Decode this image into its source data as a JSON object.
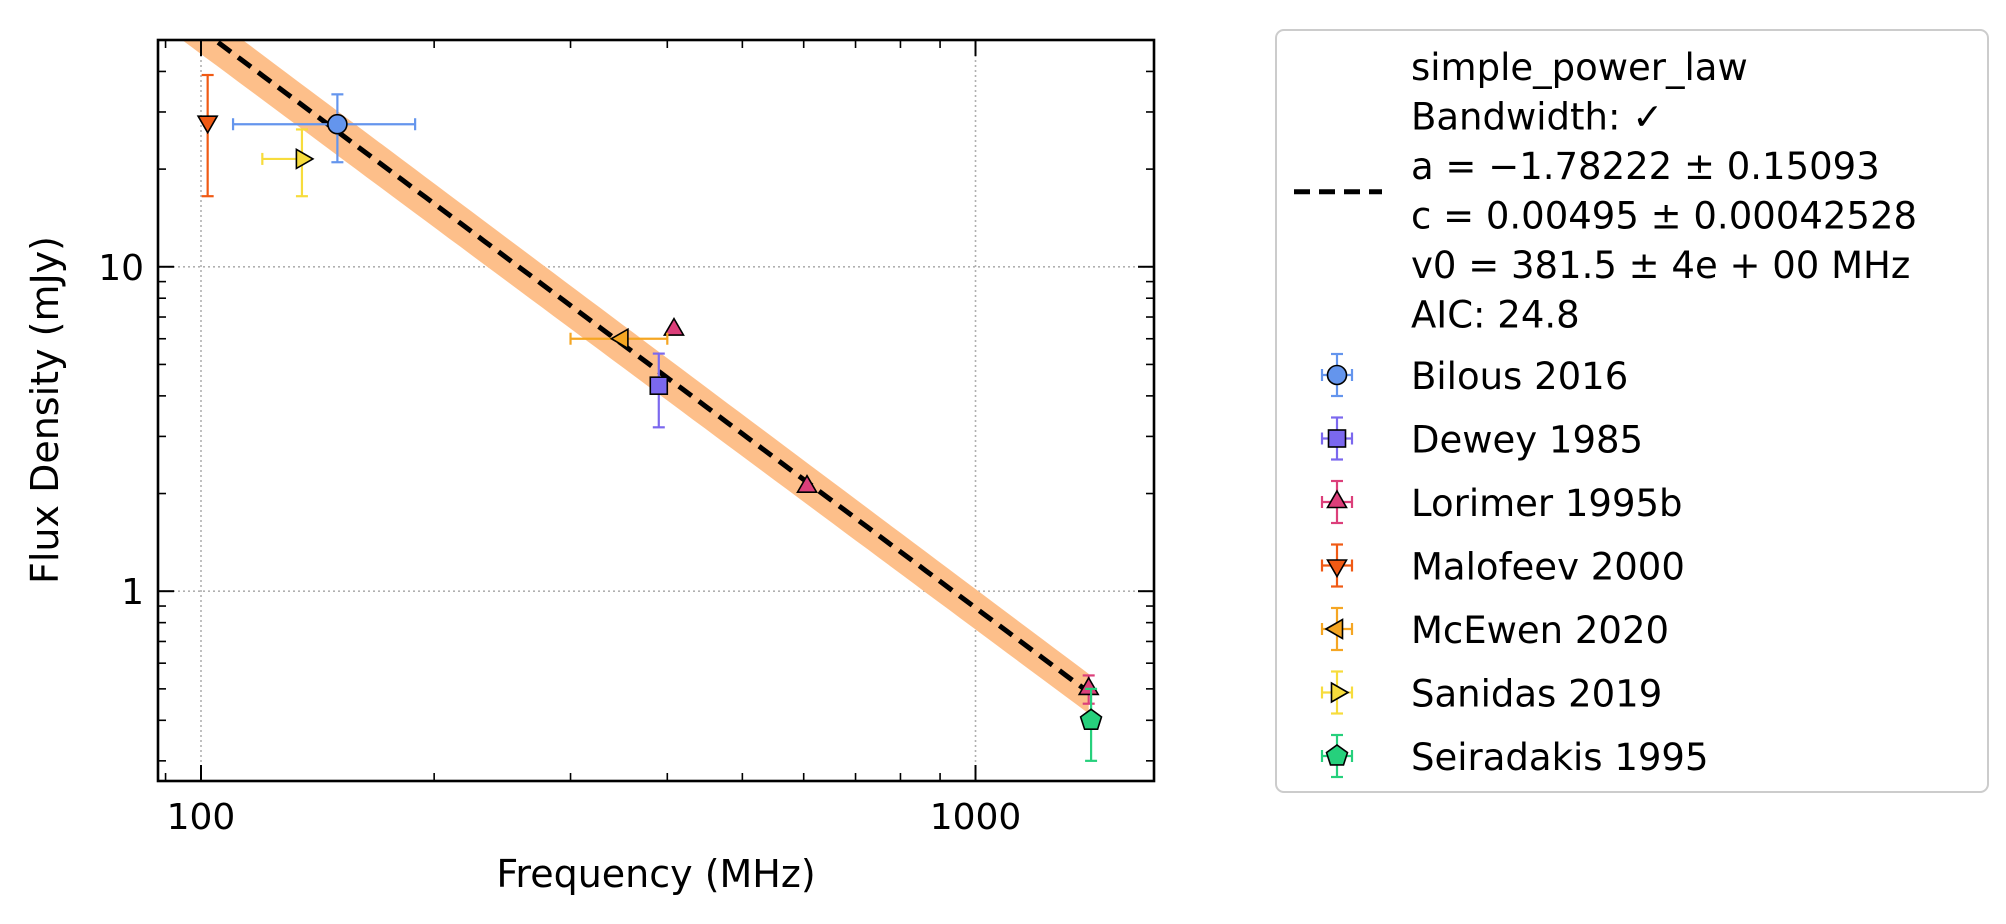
{
  "chart_data": {
    "type": "scatter",
    "title": "",
    "xlabel": "Frequency (MHz)",
    "ylabel": "Flux Density (mJy)",
    "xscale": "log",
    "yscale": "log",
    "xlim": [
      88,
      1700
    ],
    "ylim": [
      0.26,
      50
    ],
    "xticks": [
      {
        "value": 100,
        "label": "100"
      },
      {
        "value": 1000,
        "label": "1000"
      }
    ],
    "yticks": [
      {
        "value": 1,
        "label": "1"
      },
      {
        "value": 10,
        "label": "10"
      }
    ],
    "grid": true,
    "legend_position": "outside-right",
    "fit": {
      "lines": [
        "simple_power_law",
        "Bandwidth: ✓",
        "a = −1.78222 ± 0.15093",
        "c = 0.00495 ± 0.00042528",
        "v0 = 381.5 ± 4e + 00 MHz",
        "AIC: 24.8"
      ],
      "model": {
        "a": -1.78222,
        "c": 0.00495,
        "v0": 381.5
      },
      "x_range": [
        88,
        1400
      ],
      "band_fraction": [
        0.16,
        0.14
      ],
      "line_color": "#000000",
      "band_color": "#fdbf8a"
    },
    "series": [
      {
        "name": "Bilous 2016",
        "marker": "circle",
        "color": "#6495ed",
        "points": [
          {
            "x": 150,
            "y": 27.5,
            "xerr": [
              40,
              39
            ],
            "yerr": [
              6.5,
              6.5
            ]
          }
        ]
      },
      {
        "name": "Dewey 1985",
        "marker": "square",
        "color": "#7b68ee",
        "points": [
          {
            "x": 390,
            "y": 4.3,
            "xerr": [
              0,
              0
            ],
            "yerr": [
              1.1,
              1.1
            ]
          }
        ]
      },
      {
        "name": "Lorimer 1995b",
        "marker": "triangle-up",
        "color": "#dc3f7a",
        "points": [
          {
            "x": 408,
            "y": 6.4,
            "xerr": [
              0,
              0
            ],
            "yerr": [
              0,
              0
            ]
          },
          {
            "x": 606,
            "y": 2.1,
            "xerr": [
              0,
              0
            ],
            "yerr": [
              0,
              0
            ]
          },
          {
            "x": 1400,
            "y": 0.5,
            "xerr": [
              0,
              0
            ],
            "yerr": [
              0.05,
              0.05
            ]
          }
        ]
      },
      {
        "name": "Malofeev 2000",
        "marker": "triangle-down",
        "color": "#f05a14",
        "points": [
          {
            "x": 102,
            "y": 28,
            "xerr": [
              0,
              0
            ],
            "yerr": [
              11.5,
              11
            ]
          }
        ]
      },
      {
        "name": "McEwen 2020",
        "marker": "triangle-left",
        "color": "#f5a623",
        "points": [
          {
            "x": 350,
            "y": 6.0,
            "xerr": [
              50,
              50
            ],
            "yerr": [
              0,
              0
            ]
          }
        ]
      },
      {
        "name": "Sanidas 2019",
        "marker": "triangle-right",
        "color": "#f7dc3c",
        "points": [
          {
            "x": 135,
            "y": 21.5,
            "xerr": [
              15,
              0
            ],
            "yerr": [
              5,
              5
            ]
          }
        ]
      },
      {
        "name": "Seiradakis 1995",
        "marker": "pentagon",
        "color": "#26d07c",
        "points": [
          {
            "x": 1410,
            "y": 0.4,
            "xerr": [
              0,
              0
            ],
            "yerr": [
              0.1,
              0.1
            ]
          }
        ]
      }
    ]
  }
}
